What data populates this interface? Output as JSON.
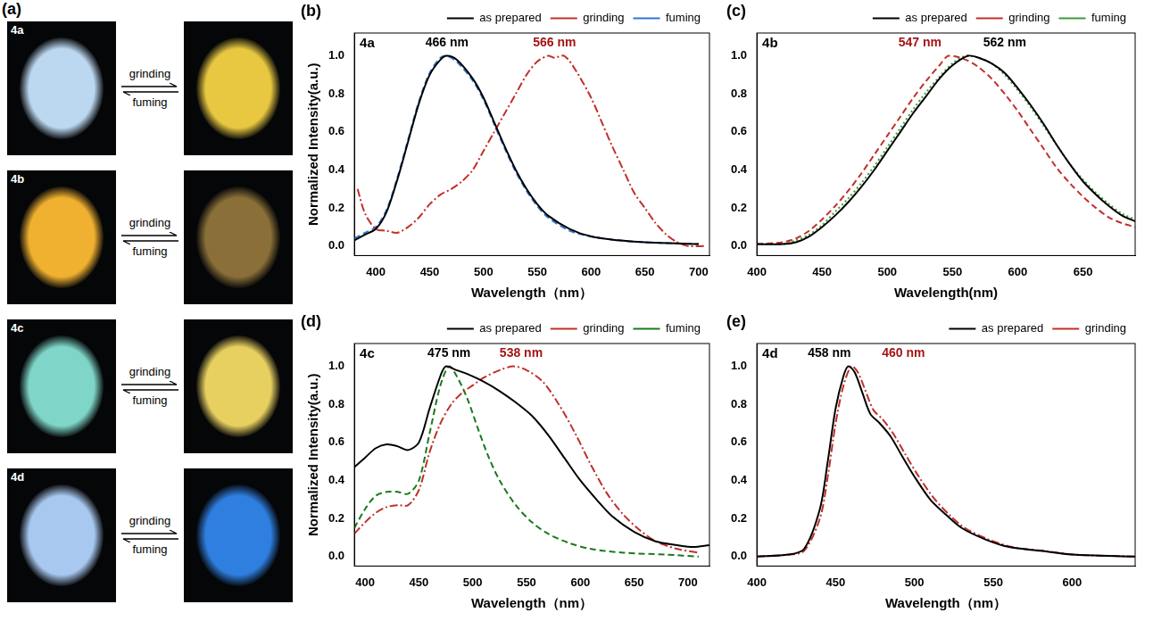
{
  "photo_panel": {
    "letter": "(a)",
    "rows": [
      {
        "label": "4a",
        "forward": "grinding",
        "backward": "fuming",
        "colors": [
          "#bcd8f0",
          "#e8c840"
        ]
      },
      {
        "label": "4b",
        "forward": "grinding",
        "backward": "fuming",
        "colors": [
          "#f0b030",
          "#8a7038"
        ]
      },
      {
        "label": "4c",
        "forward": "grinding",
        "backward": "fuming",
        "colors": [
          "#7fd6c8",
          "#e8d060"
        ]
      },
      {
        "label": "4d",
        "forward": "grinding",
        "backward": "fuming",
        "colors": [
          "#a8c8f0",
          "#2f7fe0"
        ]
      }
    ]
  },
  "chart_data": [
    {
      "type": "line",
      "letter": "(b)",
      "title": "4a",
      "x_label": "Wavelength（nm）",
      "y_label": "Normalized Intensity(a.u.)",
      "xlim": [
        380,
        710
      ],
      "xticks": [
        400,
        450,
        500,
        550,
        600,
        650,
        700
      ],
      "ylim": [
        -0.05,
        1.12
      ],
      "yticks": [
        {
          "value": 0,
          "label": "0.0"
        },
        {
          "value": 0.2,
          "label": "0.2"
        },
        {
          "value": 0.4,
          "label": "0.4"
        },
        {
          "value": 0.6,
          "label": "0.6"
        },
        {
          "value": 0.8,
          "label": "0.8"
        },
        {
          "value": 1,
          "label": "1.0"
        }
      ],
      "grid": false,
      "legend": "top",
      "annotations": [
        {
          "text": "466 nm",
          "x": 466,
          "y": 1.07,
          "color": "#000000"
        },
        {
          "text": "566 nm",
          "x": 566,
          "y": 1.07,
          "color": "#a31515"
        }
      ],
      "series": [
        {
          "name": "as prepared",
          "color": "#000000",
          "line_style": "solid",
          "x": [
            380,
            390,
            400,
            410,
            420,
            430,
            440,
            450,
            460,
            466,
            475,
            490,
            500,
            510,
            520,
            530,
            540,
            550,
            560,
            580,
            600,
            625,
            650,
            700
          ],
          "values": [
            0.03,
            0.06,
            0.09,
            0.18,
            0.35,
            0.55,
            0.75,
            0.9,
            0.98,
            1.0,
            0.98,
            0.88,
            0.78,
            0.65,
            0.52,
            0.4,
            0.3,
            0.22,
            0.16,
            0.09,
            0.05,
            0.03,
            0.02,
            0.01
          ]
        },
        {
          "name": "grinding",
          "color": "#c0302a",
          "line_style": "dashdot",
          "x": [
            383,
            390,
            400,
            410,
            420,
            430,
            440,
            450,
            460,
            470,
            480,
            490,
            500,
            510,
            520,
            530,
            540,
            550,
            560,
            566,
            575,
            585,
            600,
            610,
            620,
            630,
            640,
            650,
            660,
            670,
            680,
            690,
            705
          ],
          "values": [
            0.3,
            0.17,
            0.09,
            0.08,
            0.07,
            0.1,
            0.15,
            0.22,
            0.27,
            0.3,
            0.34,
            0.4,
            0.5,
            0.6,
            0.7,
            0.8,
            0.9,
            0.97,
            1.0,
            0.99,
            1.0,
            0.93,
            0.78,
            0.65,
            0.52,
            0.4,
            0.28,
            0.2,
            0.12,
            0.06,
            0.02,
            0.0,
            0.0
          ]
        },
        {
          "name": "fuming",
          "color": "#2e75d6",
          "line_style": "dashed",
          "x": [
            380,
            390,
            400,
            410,
            420,
            430,
            440,
            450,
            460,
            466,
            475,
            490,
            500,
            510,
            520,
            530,
            540,
            550,
            560,
            580,
            600,
            625,
            650,
            700
          ],
          "values": [
            0.04,
            0.07,
            0.1,
            0.19,
            0.36,
            0.56,
            0.76,
            0.91,
            0.99,
            1.0,
            0.97,
            0.87,
            0.77,
            0.64,
            0.51,
            0.39,
            0.29,
            0.21,
            0.15,
            0.08,
            0.05,
            0.03,
            0.02,
            0.01
          ]
        }
      ]
    },
    {
      "type": "line",
      "letter": "(c)",
      "title": "4b",
      "x_label": "Wavelength(nm)",
      "xlim": [
        400,
        690
      ],
      "xticks": [
        400,
        450,
        500,
        550,
        600,
        650
      ],
      "ylim": [
        -0.05,
        1.12
      ],
      "yticks": [
        {
          "value": 0,
          "label": "0.0"
        },
        {
          "value": 0.2,
          "label": "0.2"
        },
        {
          "value": 0.4,
          "label": "0.4"
        },
        {
          "value": 0.6,
          "label": "0.6"
        },
        {
          "value": 0.8,
          "label": "0.8"
        },
        {
          "value": 1,
          "label": "1.0"
        }
      ],
      "grid": false,
      "legend": "top",
      "annotations": [
        {
          "text": "547 nm",
          "x": 525,
          "y": 1.07,
          "color": "#a31515"
        },
        {
          "text": "562 nm",
          "x": 590,
          "y": 1.07,
          "color": "#000000"
        }
      ],
      "series": [
        {
          "name": "as prepared",
          "color": "#000000",
          "line_style": "solid",
          "x": [
            400,
            420,
            430,
            440,
            450,
            460,
            470,
            480,
            490,
            500,
            510,
            520,
            530,
            540,
            550,
            562,
            570,
            580,
            590,
            600,
            610,
            620,
            630,
            640,
            650,
            660,
            670,
            680,
            690
          ],
          "values": [
            0.01,
            0.01,
            0.02,
            0.05,
            0.1,
            0.16,
            0.23,
            0.31,
            0.4,
            0.5,
            0.6,
            0.7,
            0.79,
            0.88,
            0.95,
            1.0,
            0.99,
            0.96,
            0.91,
            0.83,
            0.74,
            0.64,
            0.53,
            0.43,
            0.34,
            0.27,
            0.21,
            0.16,
            0.13
          ]
        },
        {
          "name": "grinding",
          "color": "#c0302a",
          "line_style": "dashed",
          "x": [
            400,
            420,
            430,
            440,
            450,
            460,
            470,
            480,
            490,
            500,
            510,
            520,
            530,
            540,
            547,
            560,
            570,
            580,
            590,
            600,
            610,
            620,
            630,
            640,
            650,
            660,
            670,
            680,
            690
          ],
          "values": [
            0.01,
            0.02,
            0.04,
            0.08,
            0.14,
            0.21,
            0.29,
            0.38,
            0.48,
            0.58,
            0.68,
            0.78,
            0.87,
            0.95,
            1.0,
            0.98,
            0.94,
            0.88,
            0.8,
            0.71,
            0.61,
            0.51,
            0.41,
            0.33,
            0.26,
            0.2,
            0.15,
            0.12,
            0.1
          ]
        },
        {
          "name": "fuming",
          "color": "#3a9a3a",
          "line_style": "dotted",
          "x": [
            400,
            420,
            430,
            440,
            450,
            460,
            470,
            480,
            490,
            500,
            510,
            520,
            530,
            540,
            550,
            560,
            570,
            580,
            590,
            600,
            610,
            620,
            630,
            640,
            650,
            660,
            670,
            680,
            690
          ],
          "values": [
            0.01,
            0.01,
            0.03,
            0.06,
            0.11,
            0.18,
            0.25,
            0.33,
            0.42,
            0.52,
            0.62,
            0.72,
            0.81,
            0.89,
            0.96,
            1.0,
            0.99,
            0.96,
            0.9,
            0.82,
            0.73,
            0.63,
            0.53,
            0.43,
            0.35,
            0.28,
            0.22,
            0.17,
            0.14
          ]
        }
      ]
    },
    {
      "type": "line",
      "letter": "(d)",
      "title": "4c",
      "x_label": "Wavelength（nm）",
      "y_label": "Normalized Intensity(a.u.)",
      "xlim": [
        390,
        720
      ],
      "xticks": [
        400,
        450,
        500,
        550,
        600,
        650,
        700
      ],
      "ylim": [
        -0.05,
        1.12
      ],
      "yticks": [
        {
          "value": 0,
          "label": "0.0"
        },
        {
          "value": 0.2,
          "label": "0.2"
        },
        {
          "value": 0.4,
          "label": "0.4"
        },
        {
          "value": 0.6,
          "label": "0.6"
        },
        {
          "value": 0.8,
          "label": "0.8"
        },
        {
          "value": 1,
          "label": "1.0"
        }
      ],
      "grid": false,
      "legend": "top",
      "annotations": [
        {
          "text": "475 nm",
          "x": 478,
          "y": 1.07,
          "color": "#000000"
        },
        {
          "text": "538 nm",
          "x": 545,
          "y": 1.07,
          "color": "#a31515"
        }
      ],
      "series": [
        {
          "name": "as prepared",
          "color": "#000000",
          "line_style": "solid",
          "x": [
            390,
            400,
            410,
            420,
            430,
            440,
            450,
            460,
            470,
            475,
            485,
            495,
            510,
            525,
            540,
            555,
            570,
            585,
            600,
            615,
            630,
            650,
            670,
            690,
            705,
            720
          ],
          "values": [
            0.47,
            0.52,
            0.57,
            0.59,
            0.58,
            0.56,
            0.6,
            0.78,
            0.95,
            1.0,
            0.98,
            0.96,
            0.92,
            0.87,
            0.81,
            0.74,
            0.64,
            0.52,
            0.4,
            0.3,
            0.21,
            0.13,
            0.08,
            0.06,
            0.05,
            0.06
          ]
        },
        {
          "name": "grinding",
          "color": "#c0302a",
          "line_style": "dashdot",
          "x": [
            390,
            400,
            410,
            420,
            430,
            440,
            450,
            460,
            470,
            480,
            490,
            500,
            510,
            525,
            538,
            550,
            565,
            580,
            595,
            610,
            625,
            640,
            655,
            670,
            690,
            710
          ],
          "values": [
            0.12,
            0.18,
            0.23,
            0.26,
            0.27,
            0.27,
            0.35,
            0.55,
            0.7,
            0.8,
            0.86,
            0.9,
            0.94,
            0.98,
            1.0,
            0.98,
            0.92,
            0.8,
            0.65,
            0.48,
            0.33,
            0.22,
            0.14,
            0.08,
            0.04,
            0.02
          ]
        },
        {
          "name": "fuming",
          "color": "#1a7a1a",
          "line_style": "dashed",
          "x": [
            390,
            400,
            410,
            420,
            430,
            440,
            450,
            460,
            470,
            478,
            485,
            495,
            505,
            515,
            525,
            540,
            555,
            570,
            590,
            610,
            640,
            680,
            710
          ],
          "values": [
            0.15,
            0.25,
            0.32,
            0.34,
            0.34,
            0.33,
            0.4,
            0.65,
            0.9,
            1.0,
            0.95,
            0.83,
            0.67,
            0.52,
            0.4,
            0.27,
            0.18,
            0.12,
            0.07,
            0.04,
            0.02,
            0.01,
            0.0
          ]
        }
      ]
    },
    {
      "type": "line",
      "letter": "(e)",
      "title": "4d",
      "x_label": "Wavelength（nm）",
      "xlim": [
        400,
        640
      ],
      "xticks": [
        400,
        450,
        500,
        550,
        600
      ],
      "ylim": [
        -0.05,
        1.12
      ],
      "yticks": [
        {
          "value": 0,
          "label": "0.0"
        },
        {
          "value": 0.2,
          "label": "0.2"
        },
        {
          "value": 0.4,
          "label": "0.4"
        },
        {
          "value": 0.6,
          "label": "0.6"
        },
        {
          "value": 0.8,
          "label": "0.8"
        },
        {
          "value": 1,
          "label": "1.0"
        }
      ],
      "grid": false,
      "legend": "top",
      "annotations": [
        {
          "text": "458 nm",
          "x": 446,
          "y": 1.07,
          "color": "#000000"
        },
        {
          "text": "460 nm",
          "x": 493,
          "y": 1.07,
          "color": "#a31515"
        }
      ],
      "series": [
        {
          "name": "as prepared",
          "color": "#000000",
          "line_style": "solid",
          "x": [
            400,
            420,
            430,
            440,
            445,
            450,
            455,
            458,
            462,
            467,
            472,
            478,
            485,
            492,
            500,
            510,
            520,
            530,
            545,
            560,
            580,
            600,
            640
          ],
          "values": [
            0.0,
            0.01,
            0.04,
            0.25,
            0.5,
            0.78,
            0.95,
            1.0,
            0.97,
            0.86,
            0.75,
            0.7,
            0.63,
            0.53,
            0.42,
            0.3,
            0.22,
            0.15,
            0.09,
            0.05,
            0.03,
            0.01,
            0.0
          ]
        },
        {
          "name": "grinding",
          "color": "#c0302a",
          "line_style": "dashdot",
          "x": [
            400,
            420,
            430,
            440,
            445,
            450,
            455,
            460,
            464,
            469,
            474,
            480,
            487,
            494,
            502,
            512,
            522,
            532,
            547,
            562,
            582,
            602,
            640
          ],
          "values": [
            0.0,
            0.01,
            0.03,
            0.2,
            0.42,
            0.7,
            0.9,
            1.0,
            0.97,
            0.87,
            0.77,
            0.72,
            0.64,
            0.54,
            0.43,
            0.31,
            0.22,
            0.15,
            0.09,
            0.05,
            0.03,
            0.01,
            0.0
          ]
        }
      ]
    }
  ]
}
